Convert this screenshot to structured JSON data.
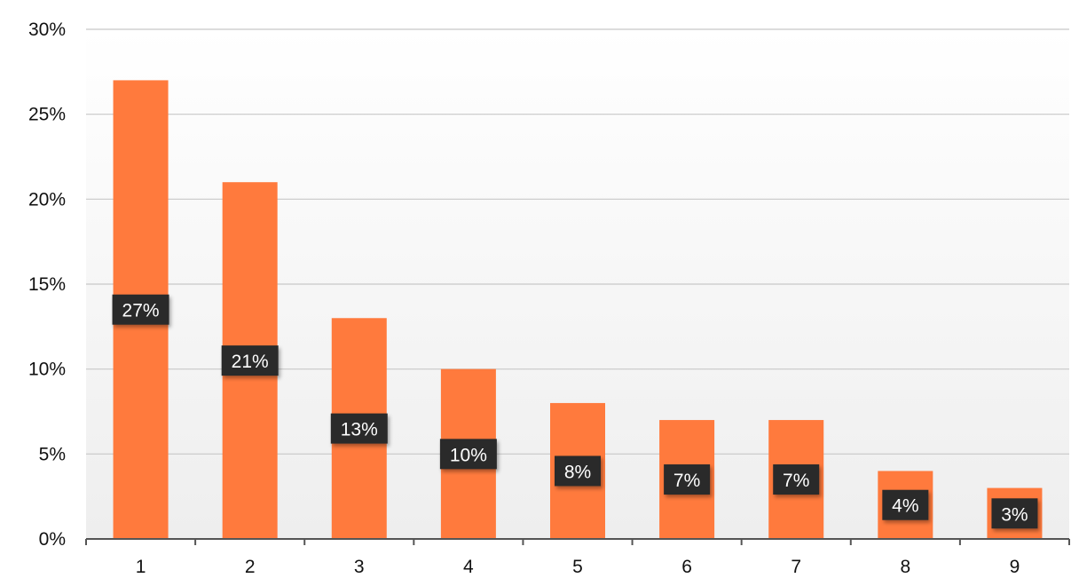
{
  "chart_data": {
    "type": "bar",
    "categories": [
      "1",
      "2",
      "3",
      "4",
      "5",
      "6",
      "7",
      "8",
      "9"
    ],
    "values": [
      27,
      21,
      13,
      10,
      8,
      7,
      7,
      4,
      3
    ],
    "data_labels": [
      "27%",
      "21%",
      "13%",
      "10%",
      "8%",
      "7%",
      "7%",
      "4%",
      "3%"
    ],
    "ytick_labels": [
      "0%",
      "5%",
      "10%",
      "15%",
      "20%",
      "25%",
      "30%"
    ],
    "ytick_values": [
      0,
      5,
      10,
      15,
      20,
      25,
      30
    ],
    "ylim": [
      0,
      30
    ],
    "grid": true,
    "legend": "none",
    "title": "",
    "xlabel": "",
    "ylabel": "",
    "colors": {
      "bar": "#ff7a3d",
      "label_bg": "#2b2b2b",
      "label_text": "#ffffff",
      "grid": "#c8c8c8",
      "axis": "#555555",
      "plot_bg_top": "#ffffff",
      "plot_bg_bottom": "#eeeeee"
    }
  }
}
